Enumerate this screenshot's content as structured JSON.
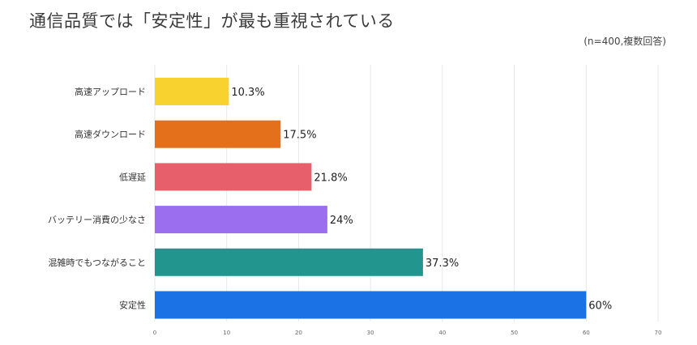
{
  "title": "通信品質では「安定性」が最も重視されている",
  "note": "(n=400,複数回答)",
  "chart_data": {
    "type": "bar",
    "orientation": "horizontal",
    "categories": [
      "高速アップロード",
      "高速ダウンロード",
      "低遅延",
      "バッテリー消費の少なさ",
      "混雑時でもつながること",
      "安定性"
    ],
    "values": [
      10.3,
      17.5,
      21.8,
      24,
      37.3,
      60
    ],
    "value_labels": [
      "10.3%",
      "17.5%",
      "21.8%",
      "24%",
      "37.3%",
      "60%"
    ],
    "colors": [
      "#f8d22e",
      "#e4701c",
      "#e85f6c",
      "#9b6ef0",
      "#23958f",
      "#1a72e4"
    ],
    "xlim": [
      0,
      70
    ],
    "xticks": [
      0,
      10,
      20,
      30,
      40,
      50,
      60,
      70
    ],
    "grid": true,
    "legend": "none"
  }
}
